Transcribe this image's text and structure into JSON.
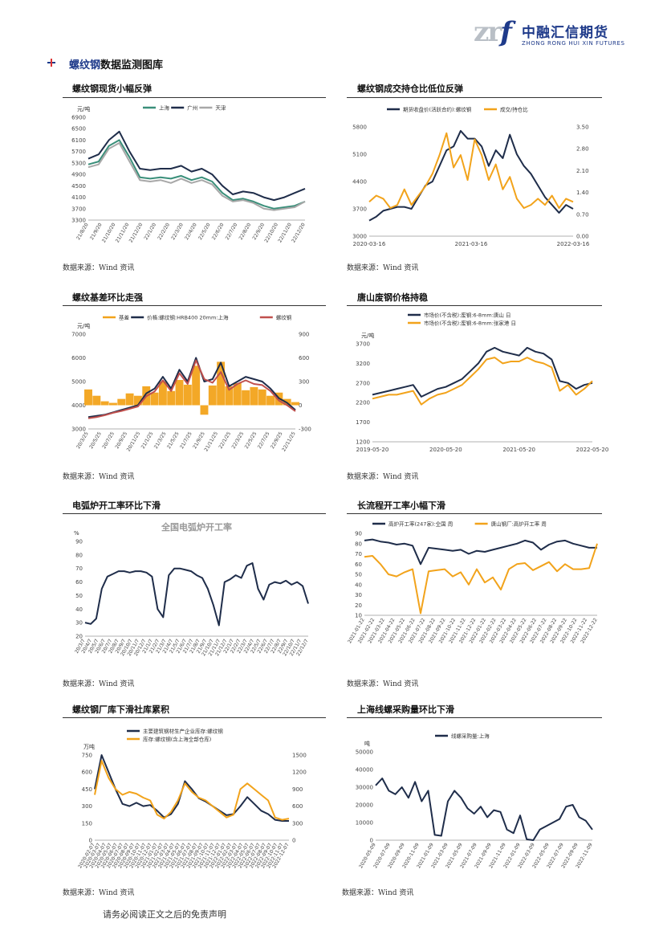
{
  "header": {
    "logo_mark": "zr",
    "logo_f": "f",
    "logo_cn": "中融汇信期货",
    "logo_en": "ZHONG RONG HUI XIN FUTURES"
  },
  "section": {
    "title_highlight": "螺纹钢",
    "title_rest": "数据监测图库"
  },
  "footer": "请务必阅读正文之后的免责声明",
  "panels": [
    {
      "caption": "螺纹钢现货小幅反弹",
      "source": "数据来源：Wind 资讯"
    },
    {
      "caption": "螺纹钢成交持仓比低位反弹",
      "source": "数据来源：Wind 资讯"
    },
    {
      "caption": "螺纹基差环比走强",
      "source": "数据来源：Wind 资讯"
    },
    {
      "caption": "唐山废钢价格持稳",
      "source": "数据来源：Wind 资讯"
    },
    {
      "caption": "电弧炉开工率环比下滑",
      "source": "数据来源：Wind 资讯"
    },
    {
      "caption": "长流程开工率小幅下滑",
      "source": "数据来源：Wind 资讯"
    },
    {
      "caption": "螺纹钢厂库下滑社库累积",
      "source": "数据来源：Wind 资讯"
    },
    {
      "caption": "上海线螺采购量环比下滑",
      "source": "数据来源：Wind 资讯"
    }
  ],
  "chart_data": [
    {
      "type": "line",
      "unit": "元/吨",
      "ylim": [
        3300,
        6900
      ],
      "yticks": [
        "6900",
        "6500",
        "6100",
        "5700",
        "5300",
        "4900",
        "4500",
        "4100",
        "3700",
        "3300"
      ],
      "xticks": [
        "21/8/20",
        "21/9/20",
        "21/10/20",
        "21/11/20",
        "21/12/20",
        "22/1/20",
        "22/2/20",
        "22/3/20",
        "22/4/20",
        "22/5/20",
        "22/6/20",
        "22/7/20",
        "22/8/20",
        "22/9/20",
        "22/10/20",
        "22/11/20",
        "22/12/20"
      ],
      "series": [
        {
          "name": "上海",
          "color": "#3a8f7a",
          "values": [
            5250,
            5350,
            5900,
            6100,
            5500,
            4800,
            4750,
            4800,
            4750,
            4850,
            4700,
            4800,
            4650,
            4250,
            4000,
            4050,
            3950,
            3800,
            3700,
            3750,
            3800,
            3950
          ]
        },
        {
          "name": "广州",
          "color": "#1f2d4a",
          "values": [
            5450,
            5600,
            6100,
            6400,
            5700,
            5100,
            5050,
            5100,
            5100,
            5200,
            5000,
            5100,
            4900,
            4500,
            4200,
            4300,
            4250,
            4100,
            4000,
            4100,
            4250,
            4400
          ]
        },
        {
          "name": "天津",
          "color": "#a8a8a8",
          "values": [
            5150,
            5250,
            5800,
            6000,
            5350,
            4700,
            4650,
            4700,
            4600,
            4750,
            4600,
            4700,
            4550,
            4150,
            3950,
            4000,
            3900,
            3700,
            3650,
            3700,
            3750,
            3950
          ]
        }
      ]
    },
    {
      "type": "line",
      "yticks_left": [
        "5800",
        "5100",
        "4400",
        "3700",
        "3000"
      ],
      "yticks_right": [
        "3.50",
        "2.80",
        "2.10",
        "1.40",
        "0.70",
        "0.00"
      ],
      "xticks": [
        "2020-03-16",
        "2021-03-16",
        "2022-03-16"
      ],
      "series": [
        {
          "name": "期货收盘价(活跃合约):螺纹钢",
          "color": "#1f2d4a",
          "axis": "left",
          "values": [
            3400,
            3500,
            3650,
            3700,
            3750,
            3750,
            3700,
            4000,
            4300,
            4400,
            4800,
            5200,
            5300,
            5700,
            5500,
            5500,
            5300,
            4800,
            5200,
            5000,
            5600,
            5100,
            4800,
            4600,
            4300,
            4000,
            3800,
            3600,
            3800,
            3700
          ]
        },
        {
          "name": "成交/持仓比",
          "color": "#f2a31b",
          "axis": "right",
          "values": [
            1.1,
            1.3,
            1.2,
            0.9,
            1.0,
            1.5,
            1.0,
            1.3,
            1.6,
            2.0,
            2.6,
            3.3,
            2.2,
            2.6,
            1.8,
            3.1,
            2.6,
            1.8,
            2.3,
            1.5,
            1.9,
            1.2,
            0.9,
            1.0,
            1.2,
            1.0,
            1.3,
            0.9,
            1.2,
            1.1
          ]
        }
      ]
    },
    {
      "type": "line",
      "unit": "元/吨",
      "yticks_left": [
        "7000",
        "6000",
        "5000",
        "4000",
        "3000"
      ],
      "yticks_right": [
        "900",
        "600",
        "300",
        "0",
        "-300"
      ],
      "xticks": [
        "20/3/25",
        "20/5/25",
        "20/7/25",
        "20/9/25",
        "20/11/25",
        "21/1/25",
        "21/3/25",
        "21/5/25",
        "21/7/25",
        "21/9/25",
        "21/11/25",
        "22/1/25",
        "22/3/25",
        "22/5/25",
        "22/7/25",
        "22/9/25",
        "22/11/25"
      ],
      "series": [
        {
          "name": "基差",
          "color": "#f2a31b",
          "axis": "right",
          "values": [
            200,
            120,
            50,
            30,
            80,
            150,
            120,
            240,
            160,
            300,
            180,
            320,
            260,
            500,
            -120,
            250,
            550,
            240,
            280,
            190,
            230,
            200,
            120,
            160,
            80,
            40
          ]
        },
        {
          "name": "价格:螺纹钢:HRB400 20mm:上海",
          "color": "#1f2d4a",
          "axis": "left",
          "values": [
            3500,
            3550,
            3600,
            3700,
            3800,
            3900,
            4000,
            4500,
            4700,
            5200,
            4700,
            5500,
            5000,
            6000,
            5000,
            5100,
            5800,
            4800,
            5000,
            5200,
            5100,
            5000,
            4700,
            4300,
            4100,
            3800
          ]
        },
        {
          "name": "螺纹钢",
          "color": "#c0504d",
          "axis": "left",
          "values": [
            3450,
            3500,
            3580,
            3680,
            3760,
            3850,
            3950,
            4380,
            4580,
            5050,
            4600,
            5350,
            4900,
            5900,
            5100,
            4950,
            5400,
            4650,
            4900,
            5050,
            4900,
            4850,
            4600,
            4200,
            4000,
            3750
          ]
        }
      ]
    },
    {
      "type": "line",
      "unit": "元/吨",
      "ylim": [
        1200,
        3700
      ],
      "yticks": [
        "3700",
        "3200",
        "2700",
        "2200",
        "1700",
        "1200"
      ],
      "xticks": [
        "2019-05-20",
        "2020-05-20",
        "2021-05-20",
        "2022-05-20"
      ],
      "series": [
        {
          "name": "市场价(不含税):废钢:6-8mm:唐山 日",
          "color": "#1f2d4a",
          "values": [
            2400,
            2450,
            2500,
            2550,
            2600,
            2650,
            2350,
            2450,
            2550,
            2600,
            2700,
            2800,
            3000,
            3200,
            3500,
            3600,
            3500,
            3450,
            3400,
            3600,
            3500,
            3450,
            3300,
            2750,
            2700,
            2550,
            2650,
            2700
          ]
        },
        {
          "name": "市场价(不含税):废钢:6-8mm:张家港 日",
          "color": "#f2a31b",
          "values": [
            2300,
            2350,
            2400,
            2400,
            2450,
            2500,
            2150,
            2300,
            2400,
            2450,
            2550,
            2650,
            2850,
            3050,
            3300,
            3350,
            3200,
            3250,
            3250,
            3350,
            3250,
            3200,
            3100,
            2500,
            2650,
            2400,
            2550,
            2750
          ]
        }
      ]
    },
    {
      "type": "line",
      "title": "全国电弧炉开工率",
      "unit": "%",
      "ylim": [
        20,
        90
      ],
      "yticks": [
        "90",
        "80",
        "70",
        "60",
        "50",
        "40",
        "30",
        "20"
      ],
      "xticks": [
        "20/3/7",
        "20/4/7",
        "20/5/7",
        "20/6/7",
        "20/7/7",
        "20/8/7",
        "20/9/7",
        "20/10/7",
        "20/11/7",
        "20/12/7",
        "21/1/7",
        "21/2/7",
        "21/3/7",
        "21/4/7",
        "21/5/7",
        "21/6/7",
        "21/7/7",
        "21/8/7",
        "21/9/7",
        "21/10/7",
        "21/11/7",
        "21/12/7",
        "22/1/7",
        "22/2/7",
        "22/3/7",
        "22/4/7",
        "22/5/7",
        "22/6/7",
        "22/7/7",
        "22/8/7",
        "22/9/7",
        "22/10/7",
        "22/11/7",
        "22/12/7"
      ],
      "series": [
        {
          "name": "全国电弧炉开工率",
          "color": "#1f2d4a",
          "values": [
            30,
            29,
            33,
            55,
            64,
            66,
            68,
            68,
            67,
            68,
            68,
            67,
            64,
            40,
            34,
            65,
            70,
            70,
            69,
            68,
            65,
            63,
            55,
            43,
            28,
            60,
            62,
            65,
            63,
            72,
            74,
            55,
            47,
            58,
            60,
            59,
            61,
            58,
            60,
            57,
            44
          ]
        }
      ]
    },
    {
      "type": "line",
      "ylim": [
        10,
        90
      ],
      "yticks": [
        "90",
        "80",
        "70",
        "60",
        "50",
        "40",
        "30",
        "20",
        "10"
      ],
      "xticks": [
        "2021-01-22",
        "2021-02-22",
        "2021-03-22",
        "2021-04-22",
        "2021-05-22",
        "2021-06-22",
        "2021-07-22",
        "2021-08-22",
        "2021-09-22",
        "2021-10-22",
        "2021-11-22",
        "2021-12-22",
        "2022-01-22",
        "2022-02-22",
        "2022-03-22",
        "2022-04-22",
        "2022-05-22",
        "2022-06-22",
        "2022-07-22",
        "2022-08-22",
        "2022-09-22",
        "2022-10-22",
        "2022-11-22",
        "2022-12-22"
      ],
      "series": [
        {
          "name": "高炉开工率(247家):全国 周",
          "color": "#1f2d4a",
          "values": [
            83,
            84,
            82,
            81,
            79,
            80,
            78,
            60,
            76,
            75,
            74,
            73,
            74,
            70,
            73,
            72,
            74,
            76,
            78,
            80,
            83,
            81,
            74,
            79,
            82,
            83,
            80,
            78,
            76,
            76
          ]
        },
        {
          "name": "唐山钢厂:高炉开工率 周",
          "color": "#f2a31b",
          "values": [
            67,
            68,
            60,
            50,
            48,
            52,
            55,
            12,
            53,
            54,
            55,
            48,
            52,
            40,
            55,
            42,
            47,
            35,
            55,
            60,
            61,
            54,
            58,
            62,
            53,
            60,
            55,
            55,
            56,
            80
          ]
        }
      ]
    },
    {
      "type": "line",
      "unit": "万吨",
      "yticks_left": [
        "750",
        "600",
        "450",
        "300",
        "150",
        "0"
      ],
      "yticks_right": [
        "1500",
        "1200",
        "900",
        "600",
        "300",
        "0"
      ],
      "xticks": [
        "2020-02-07",
        "2020-03-07",
        "2020-04-07",
        "2020-05-07",
        "2020-06-07",
        "2020-07-07",
        "2020-08-07",
        "2020-09-07",
        "2020-10-07",
        "2020-11-07",
        "2020-12-07",
        "2021-01-07",
        "2021-02-07",
        "2021-03-07",
        "2021-04-07",
        "2021-05-07",
        "2021-06-07",
        "2021-07-07",
        "2021-08-07",
        "2021-09-07",
        "2021-10-07",
        "2021-11-07",
        "2021-12-07",
        "2022-01-07",
        "2022-02-07",
        "2022-03-07",
        "2022-04-07",
        "2022-05-07",
        "2022-06-07",
        "2022-07-07",
        "2022-08-07",
        "2022-09-07",
        "2022-10-07",
        "2022-11-07",
        "2022-12-07"
      ],
      "series": [
        {
          "name": "主要建筑钢材生产企业库存:螺纹钢",
          "color": "#1f2d4a",
          "axis": "left",
          "values": [
            450,
            750,
            600,
            450,
            320,
            300,
            330,
            300,
            310,
            260,
            200,
            230,
            320,
            520,
            450,
            370,
            340,
            300,
            260,
            220,
            230,
            300,
            380,
            320,
            260,
            230,
            180,
            170,
            170
          ]
        },
        {
          "name": "库存:螺纹钢(含上海全部仓库)",
          "color": "#f2a31b",
          "axis": "right",
          "values": [
            800,
            1400,
            1100,
            900,
            800,
            850,
            820,
            750,
            700,
            450,
            380,
            500,
            700,
            1000,
            850,
            750,
            700,
            600,
            500,
            400,
            450,
            900,
            1000,
            900,
            800,
            700,
            400,
            360,
            380
          ]
        }
      ]
    },
    {
      "type": "line",
      "unit": "吨",
      "ylim": [
        0,
        50000
      ],
      "yticks": [
        "50000",
        "40000",
        "30000",
        "20000",
        "10000",
        "0"
      ],
      "xticks": [
        "2020-05-09",
        "2020-07-09",
        "2020-09-09",
        "2020-11-09",
        "2021-01-09",
        "2021-03-09",
        "2021-05-09",
        "2021-07-09",
        "2021-09-09",
        "2021-11-09",
        "2022-01-09",
        "2022-03-09",
        "2022-05-09",
        "2022-07-09",
        "2022-09-09",
        "2022-11-09"
      ],
      "series": [
        {
          "name": "线螺采购量:上海",
          "color": "#1f2d4a",
          "values": [
            31000,
            35000,
            28000,
            26000,
            30000,
            24000,
            33000,
            22000,
            28000,
            3000,
            2500,
            22000,
            28000,
            24000,
            18000,
            15000,
            19000,
            13000,
            17000,
            16000,
            6000,
            4000,
            14000,
            500,
            0,
            6000,
            8000,
            10000,
            12000,
            19000,
            20000,
            13000,
            11000,
            6000
          ]
        }
      ]
    }
  ]
}
